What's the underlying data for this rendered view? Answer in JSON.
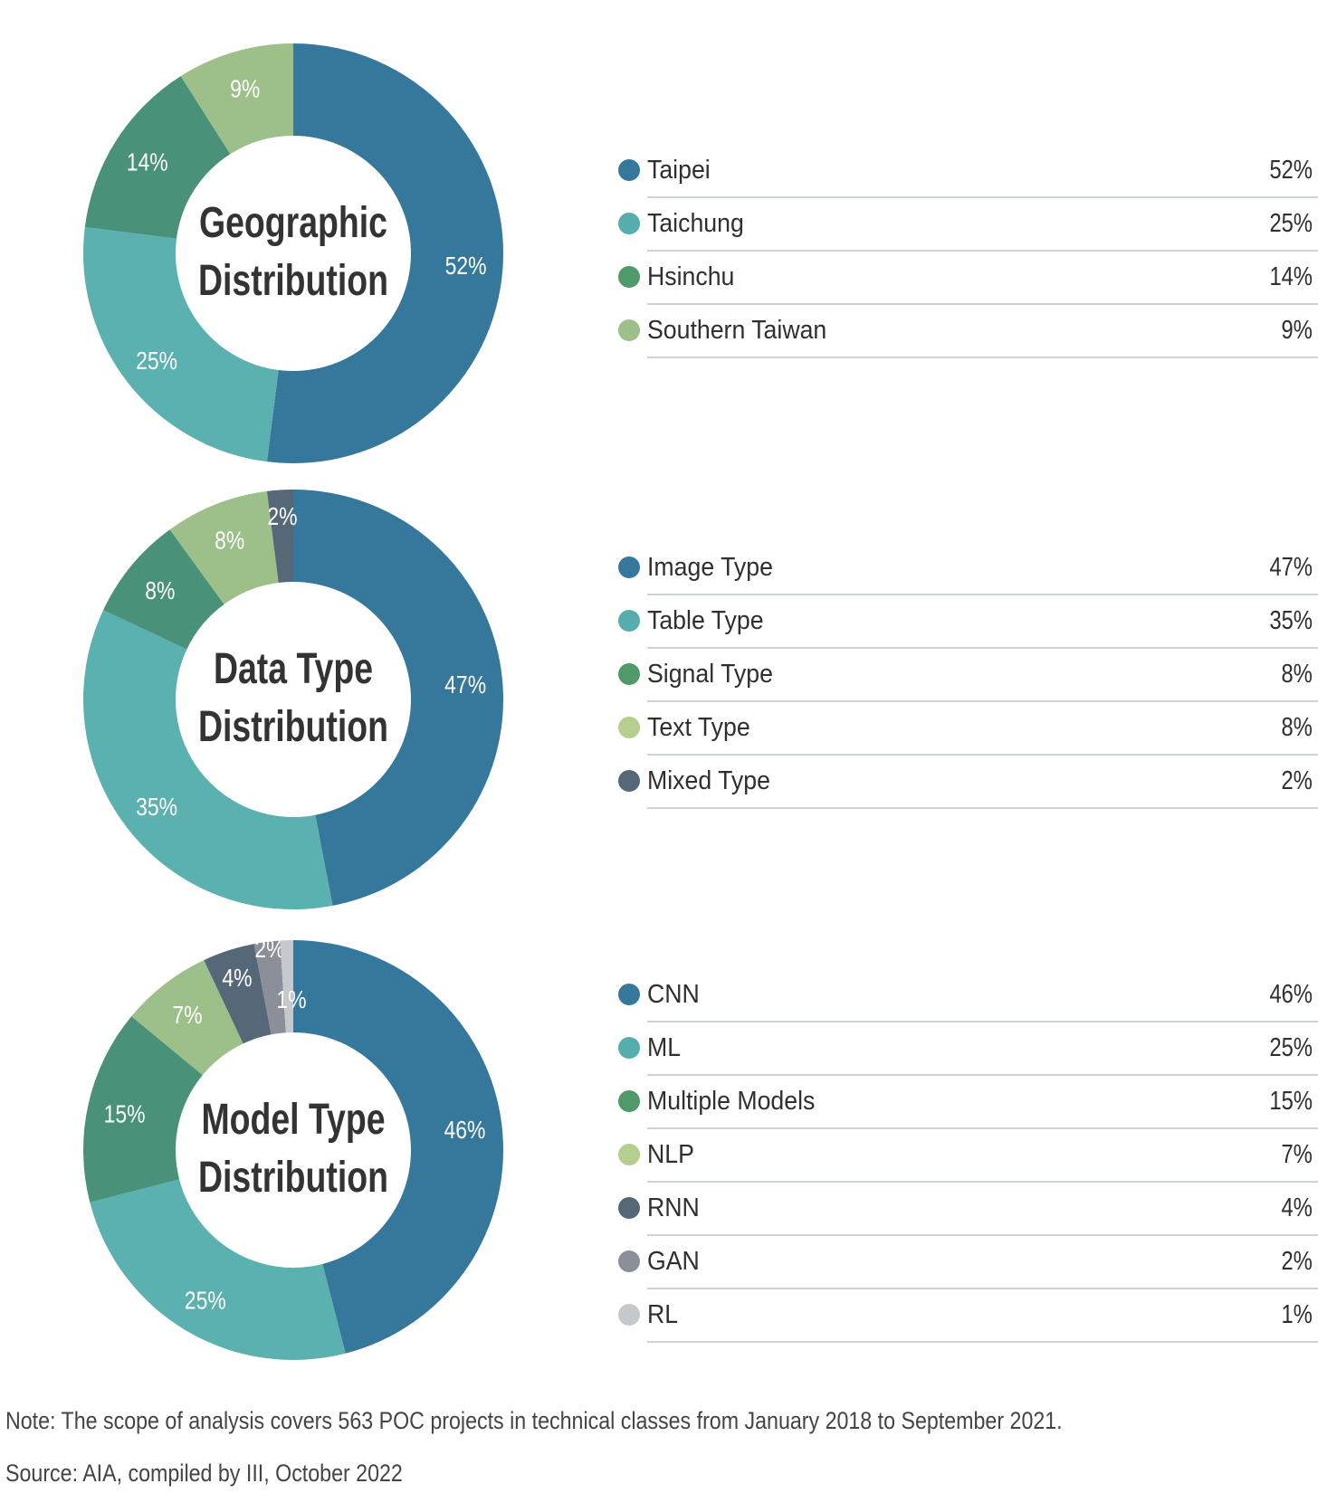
{
  "chart_data": [
    {
      "type": "pie",
      "style": "donut",
      "title": "Geographic Distribution",
      "title_lines": [
        "Geographic",
        "Distribution"
      ],
      "categories": [
        "Taipei",
        "Taichung",
        "Hsinchu",
        "Southern Taiwan"
      ],
      "values": [
        52,
        25,
        14,
        9
      ],
      "labels": [
        "52%",
        "25%",
        "14%",
        "9%"
      ],
      "colors": [
        "#35789c",
        "#5bb0b0",
        "#4a917a",
        "#9dbf8a"
      ],
      "legend_colors": [
        "#35789c",
        "#55adad",
        "#4f9a68",
        "#9dbf8a"
      ],
      "legend": "right"
    },
    {
      "type": "pie",
      "style": "donut",
      "title": "Data Type Distribution",
      "title_lines": [
        "Data Type",
        "Distribution"
      ],
      "categories": [
        "Image Type",
        "Table Type",
        "Signal Type",
        "Text Type",
        "Mixed Type"
      ],
      "values": [
        47,
        35,
        8,
        8,
        2
      ],
      "labels": [
        "47%",
        "35%",
        "8%",
        "8%",
        "2%"
      ],
      "colors": [
        "#35789c",
        "#5bb0b0",
        "#4a917a",
        "#9dbf8a",
        "#566878"
      ],
      "legend_colors": [
        "#35789c",
        "#55adad",
        "#4f9a68",
        "#b5d08e",
        "#566878"
      ],
      "legend": "right"
    },
    {
      "type": "pie",
      "style": "donut",
      "title": "Model Type Distribution",
      "title_lines": [
        "Model Type",
        "Distribution"
      ],
      "categories": [
        "CNN",
        "ML",
        "Multiple Models",
        "NLP",
        "RNN",
        "GAN",
        "RL"
      ],
      "values": [
        46,
        25,
        15,
        7,
        4,
        2,
        1
      ],
      "labels": [
        "46%",
        "25%",
        "15%",
        "7%",
        "4%",
        "2%",
        "1%"
      ],
      "colors": [
        "#35789c",
        "#5bb0b0",
        "#4a917a",
        "#9dbf8a",
        "#566878",
        "#8a8f9a",
        "#c5c8cc"
      ],
      "legend_colors": [
        "#35789c",
        "#55adad",
        "#4f9a68",
        "#b5d08e",
        "#566878",
        "#8a8f9a",
        "#c5c8cc"
      ],
      "legend": "right"
    }
  ],
  "footer": {
    "note": "Note: The scope of analysis covers 563 POC projects in technical classes from January 2018 to September 2021.",
    "source": "Source: AIA, compiled by III, October 2022"
  }
}
